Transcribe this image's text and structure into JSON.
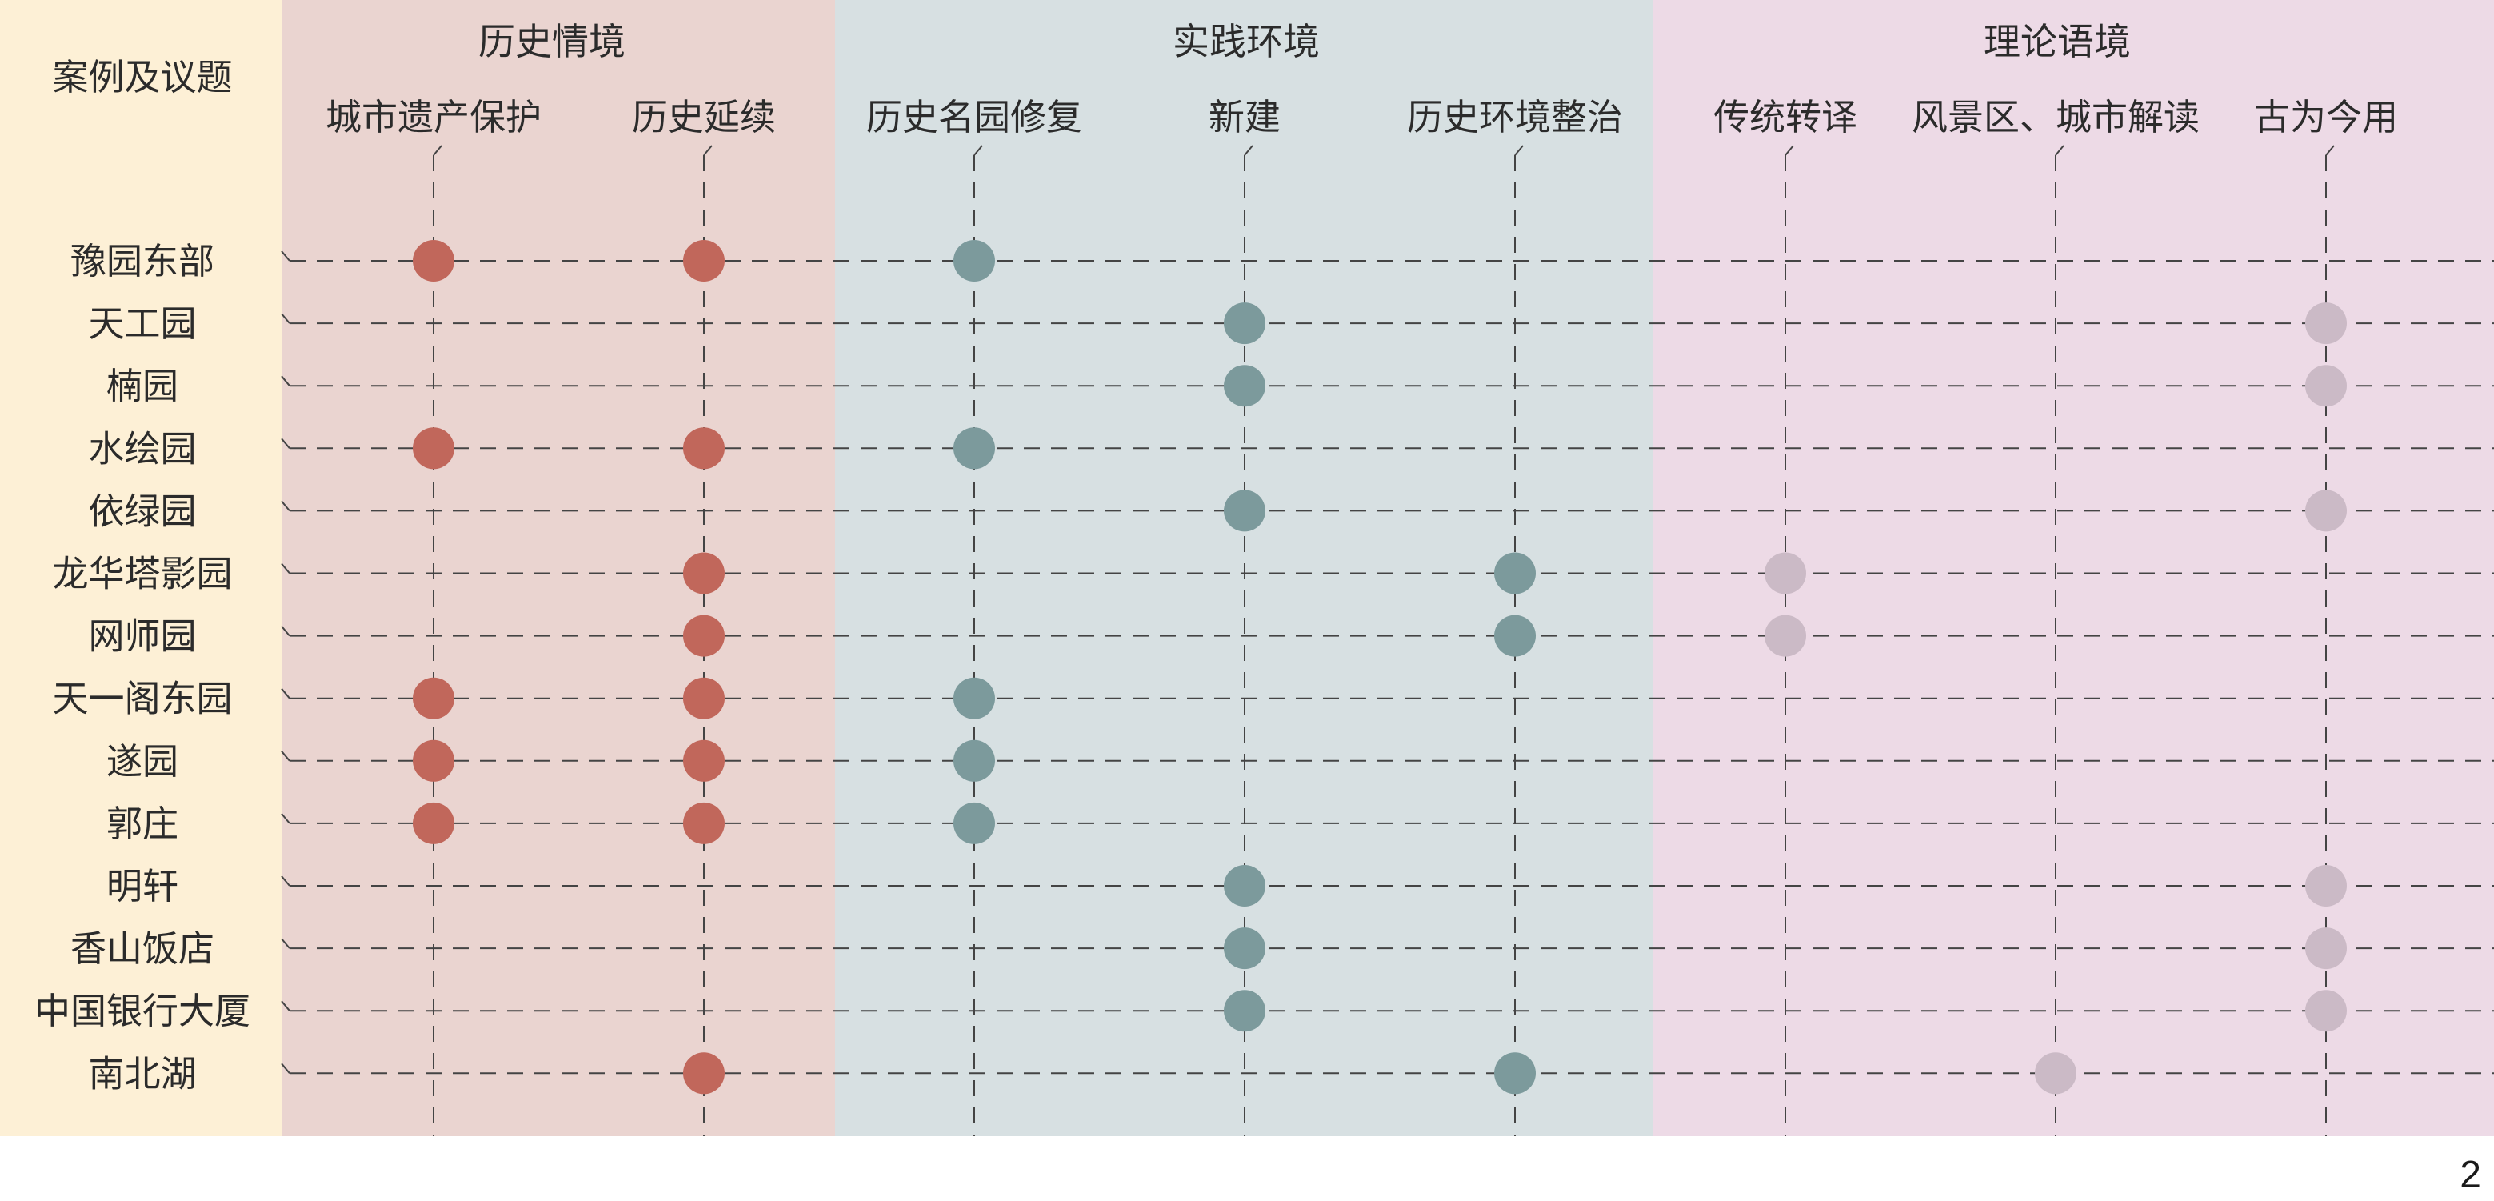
{
  "corner_label": "案例及议题",
  "page_number": "2",
  "colors": {
    "label_band": "#fdf0d6",
    "history_band": "#ead4d0",
    "practice_band": "#d7e0e2",
    "theory_band": "#eddae6",
    "history_dot": "#c1675b",
    "practice_dot": "#7c9a9c",
    "theory_dot": "#cbbac6",
    "line": "#444444"
  },
  "groups": [
    {
      "key": "history",
      "label": "历史情境",
      "columns": [
        "城市遗产保护",
        "历史延续"
      ]
    },
    {
      "key": "practice",
      "label": "实践环境",
      "columns": [
        "历史名园修复",
        "新建",
        "历史环境整治"
      ]
    },
    {
      "key": "theory",
      "label": "理论语境",
      "columns": [
        "传统转译",
        "风景区、城市解读",
        "古为今用"
      ]
    }
  ],
  "cases": [
    {
      "name": "豫园东部",
      "marks": [
        1,
        1,
        1,
        0,
        0,
        0,
        0,
        0
      ]
    },
    {
      "name": "天工园",
      "marks": [
        0,
        0,
        0,
        1,
        0,
        0,
        0,
        1
      ]
    },
    {
      "name": "楠园",
      "marks": [
        0,
        0,
        0,
        1,
        0,
        0,
        0,
        1
      ]
    },
    {
      "name": "水绘园",
      "marks": [
        1,
        1,
        1,
        0,
        0,
        0,
        0,
        0
      ]
    },
    {
      "name": "依绿园",
      "marks": [
        0,
        0,
        0,
        1,
        0,
        0,
        0,
        1
      ]
    },
    {
      "name": "龙华塔影园",
      "marks": [
        0,
        1,
        0,
        0,
        1,
        1,
        0,
        0
      ]
    },
    {
      "name": "网师园",
      "marks": [
        0,
        1,
        0,
        0,
        1,
        1,
        0,
        0
      ]
    },
    {
      "name": "天一阁东园",
      "marks": [
        1,
        1,
        1,
        0,
        0,
        0,
        0,
        0
      ]
    },
    {
      "name": "遂园",
      "marks": [
        1,
        1,
        1,
        0,
        0,
        0,
        0,
        0
      ]
    },
    {
      "name": "郭庄",
      "marks": [
        1,
        1,
        1,
        0,
        0,
        0,
        0,
        0
      ]
    },
    {
      "name": "明轩",
      "marks": [
        0,
        0,
        0,
        1,
        0,
        0,
        0,
        1
      ]
    },
    {
      "name": "香山饭店",
      "marks": [
        0,
        0,
        0,
        1,
        0,
        0,
        0,
        1
      ]
    },
    {
      "name": "中国银行大厦",
      "marks": [
        0,
        0,
        0,
        1,
        0,
        0,
        0,
        1
      ]
    },
    {
      "name": "南北湖",
      "marks": [
        0,
        1,
        0,
        0,
        1,
        0,
        1,
        0
      ]
    }
  ]
}
